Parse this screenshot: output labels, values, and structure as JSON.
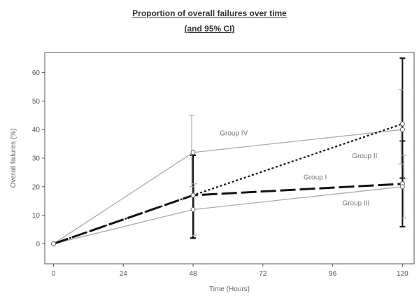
{
  "chart_data": {
    "type": "line",
    "title": "Proportion of overall failures over time",
    "subtitle": "(and 95% CI)",
    "xlabel": "Time (Hours)",
    "ylabel": "Overall failures (%)",
    "xticks": [
      0,
      24,
      48,
      72,
      96,
      120
    ],
    "yticks": [
      0,
      10,
      20,
      30,
      40,
      50,
      60
    ],
    "xlim": [
      -3,
      124
    ],
    "ylim": [
      -7,
      67
    ],
    "grid": false,
    "legend": "none",
    "x": [
      0,
      48,
      120
    ],
    "series": [
      {
        "name": "Group I",
        "values": [
          0,
          17,
          21
        ],
        "ci_low": [
          0,
          2,
          6
        ],
        "ci_high": [
          0,
          31,
          36
        ],
        "style": "dashed-long",
        "color": "#111111",
        "width": 3,
        "offset": 0
      },
      {
        "name": "Group II",
        "values": [
          0,
          17,
          42
        ],
        "ci_low": [
          0,
          2,
          23
        ],
        "ci_high": [
          0,
          31,
          65
        ],
        "style": "dotted",
        "color": "#111111",
        "width": 2.2,
        "offset": 0
      },
      {
        "name": "Group III",
        "values": [
          0,
          12,
          20
        ],
        "ci_low": [
          0,
          3,
          9
        ],
        "ci_high": [
          0,
          21,
          31
        ],
        "style": "solid",
        "color": "#aaaaaa",
        "width": 1.3,
        "offset": 2
      },
      {
        "name": "Group IV",
        "values": [
          0,
          32,
          40
        ],
        "ci_low": [
          0,
          20,
          28
        ],
        "ci_high": [
          0,
          45,
          54
        ],
        "style": "solid",
        "color": "#aaaaaa",
        "width": 1.3,
        "offset": -2
      }
    ],
    "annotations": [
      {
        "text": "Group IV",
        "x": 62,
        "y": 38
      },
      {
        "text": "Group II",
        "x": 107,
        "y": 30
      },
      {
        "text": "Group I",
        "x": 90,
        "y": 22.5
      },
      {
        "text": "Group III",
        "x": 104,
        "y": 13.5
      }
    ]
  }
}
